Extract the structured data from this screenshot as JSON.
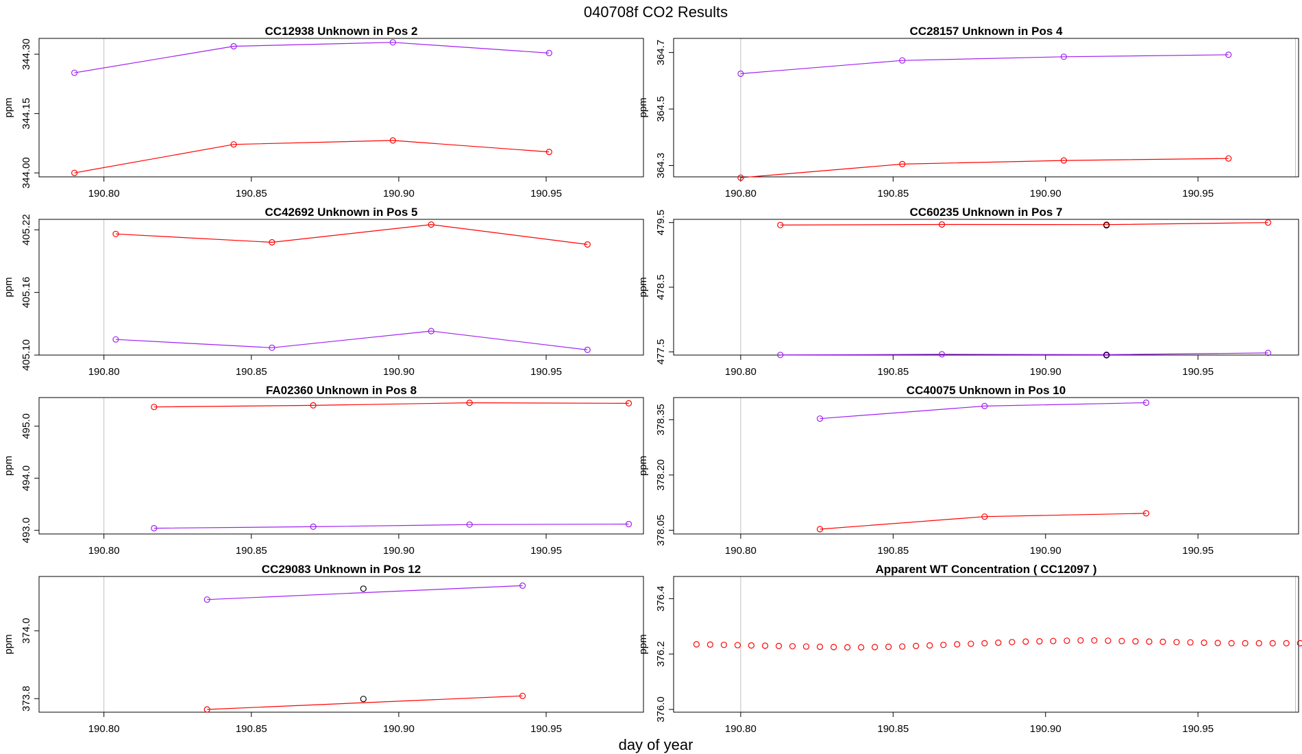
{
  "figure": {
    "title": "040708f  CO2 Results",
    "xlabel": "day of year"
  },
  "colors": {
    "red": "#ff0000",
    "purple": "#a020f0",
    "black": "#000000",
    "grid": "#bebebe",
    "axis": "#000000"
  },
  "chart_data": [
    {
      "type": "line",
      "title": "CC12938    Unknown in Pos 2",
      "ylabel": "ppm",
      "xlim": [
        190.778,
        190.983
      ],
      "ylim": [
        343.99,
        344.34
      ],
      "xticks": [
        190.8,
        190.85,
        190.9,
        190.95
      ],
      "xtick_labels": [
        "190.80",
        "190.85",
        "190.90",
        "190.95"
      ],
      "yticks": [
        344.0,
        344.15,
        344.3
      ],
      "ytick_labels": [
        "344.00",
        "344.15",
        "344.30"
      ],
      "vlines": [
        190.8,
        190.983
      ],
      "series": [
        {
          "name": "purple",
          "color": "#a020f0",
          "x": [
            190.79,
            190.844,
            190.898,
            190.951
          ],
          "y": [
            344.253,
            344.32,
            344.33,
            344.303
          ]
        },
        {
          "name": "red",
          "color": "#ff0000",
          "x": [
            190.79,
            190.844,
            190.898,
            190.951
          ],
          "y": [
            344.0,
            344.072,
            344.082,
            344.053
          ]
        }
      ],
      "black_points": {
        "x": [],
        "y": []
      }
    },
    {
      "type": "line",
      "title": "CC28157    Unknown in Pos 4",
      "ylabel": "ppm",
      "xlim": [
        190.778,
        190.983
      ],
      "ylim": [
        364.26,
        364.75
      ],
      "xticks": [
        190.8,
        190.85,
        190.9,
        190.95
      ],
      "xtick_labels": [
        "190.80",
        "190.85",
        "190.90",
        "190.95"
      ],
      "yticks": [
        364.3,
        364.5,
        364.7
      ],
      "ytick_labels": [
        "364.3",
        "364.5",
        "364.7"
      ],
      "vlines": [
        190.8,
        190.982
      ],
      "series": [
        {
          "name": "purple",
          "color": "#a020f0",
          "x": [
            190.8,
            190.853,
            190.906,
            190.96
          ],
          "y": [
            364.625,
            364.672,
            364.685,
            364.692
          ]
        },
        {
          "name": "red",
          "color": "#ff0000",
          "x": [
            190.8,
            190.853,
            190.906,
            190.96
          ],
          "y": [
            364.257,
            364.305,
            364.318,
            364.325
          ]
        }
      ],
      "black_points": {
        "x": [],
        "y": []
      }
    },
    {
      "type": "line",
      "title": "CC42692    Unknown in Pos 5",
      "ylabel": "ppm",
      "xlim": [
        190.778,
        190.983
      ],
      "ylim": [
        405.1,
        405.23
      ],
      "xticks": [
        190.8,
        190.85,
        190.9,
        190.95
      ],
      "xtick_labels": [
        "190.80",
        "190.85",
        "190.90",
        "190.95"
      ],
      "yticks": [
        405.1,
        405.16,
        405.22
      ],
      "ytick_labels": [
        "405.10",
        "405.16",
        "405.22"
      ],
      "vlines": [
        190.8,
        190.983
      ],
      "series": [
        {
          "name": "red",
          "color": "#ff0000",
          "x": [
            190.804,
            190.857,
            190.911,
            190.964
          ],
          "y": [
            405.216,
            405.208,
            405.225,
            405.206
          ]
        },
        {
          "name": "purple",
          "color": "#a020f0",
          "x": [
            190.804,
            190.857,
            190.911,
            190.964
          ],
          "y": [
            405.115,
            405.107,
            405.123,
            405.105
          ]
        }
      ],
      "black_points": {
        "x": [],
        "y": []
      }
    },
    {
      "type": "line",
      "title": "CC60235    Unknown in Pos 7",
      "ylabel": "ppm",
      "xlim": [
        190.778,
        190.983
      ],
      "ylim": [
        477.45,
        479.55
      ],
      "xticks": [
        190.8,
        190.85,
        190.9,
        190.95
      ],
      "xtick_labels": [
        "190.80",
        "190.85",
        "190.90",
        "190.95"
      ],
      "yticks": [
        477.5,
        478.5,
        479.5
      ],
      "ytick_labels": [
        "477.5",
        "478.5",
        "479.5"
      ],
      "vlines": [
        190.8,
        190.983
      ],
      "series": [
        {
          "name": "red",
          "color": "#ff0000",
          "x": [
            190.813,
            190.866,
            190.92,
            190.973
          ],
          "y": [
            479.462,
            479.47,
            479.468,
            479.5
          ]
        },
        {
          "name": "purple",
          "color": "#a020f0",
          "x": [
            190.813,
            190.866,
            190.92,
            190.973
          ],
          "y": [
            477.452,
            477.462,
            477.456,
            477.483
          ]
        }
      ],
      "black_points": {
        "x": [
          190.92,
          190.92
        ],
        "y": [
          479.458,
          477.447
        ]
      }
    },
    {
      "type": "line",
      "title": "FA02360    Unknown in Pos 8",
      "ylabel": "ppm",
      "xlim": [
        190.778,
        190.983
      ],
      "ylim": [
        492.93,
        495.55
      ],
      "xticks": [
        190.8,
        190.85,
        190.9,
        190.95
      ],
      "xtick_labels": [
        "190.80",
        "190.85",
        "190.90",
        "190.95"
      ],
      "yticks": [
        493.0,
        494.0,
        495.0
      ],
      "ytick_labels": [
        "493.0",
        "494.0",
        "495.0"
      ],
      "vlines": [
        190.8,
        190.983
      ],
      "series": [
        {
          "name": "red",
          "color": "#ff0000",
          "x": [
            190.817,
            190.871,
            190.924,
            190.978
          ],
          "y": [
            495.37,
            495.4,
            495.45,
            495.44
          ]
        },
        {
          "name": "purple",
          "color": "#a020f0",
          "x": [
            190.817,
            190.871,
            190.924,
            190.978
          ],
          "y": [
            493.04,
            493.07,
            493.11,
            493.12
          ]
        }
      ],
      "black_points": {
        "x": [],
        "y": []
      }
    },
    {
      "type": "line",
      "title": "CC40075    Unknown in Pos 10",
      "ylabel": "ppm",
      "xlim": [
        190.778,
        190.983
      ],
      "ylim": [
        378.04,
        378.41
      ],
      "xticks": [
        190.8,
        190.85,
        190.9,
        190.95
      ],
      "xtick_labels": [
        "190.80",
        "190.85",
        "190.90",
        "190.95"
      ],
      "yticks": [
        378.05,
        378.2,
        378.35
      ],
      "ytick_labels": [
        "378.05",
        "378.20",
        "378.35"
      ],
      "vlines": [
        190.8,
        190.983
      ],
      "series": [
        {
          "name": "purple",
          "color": "#a020f0",
          "x": [
            190.826,
            190.88,
            190.933
          ],
          "y": [
            378.353,
            378.387,
            378.396
          ]
        },
        {
          "name": "red",
          "color": "#ff0000",
          "x": [
            190.826,
            190.88,
            190.933
          ],
          "y": [
            378.053,
            378.087,
            378.096
          ]
        }
      ],
      "black_points": {
        "x": [],
        "y": []
      }
    },
    {
      "type": "line",
      "title": "CC29083    Unknown in Pos 12",
      "ylabel": "ppm",
      "xlim": [
        190.778,
        190.983
      ],
      "ylim": [
        373.76,
        374.16
      ],
      "xticks": [
        190.8,
        190.85,
        190.9,
        190.95
      ],
      "xtick_labels": [
        "190.80",
        "190.85",
        "190.90",
        "190.95"
      ],
      "yticks": [
        373.8,
        374.0
      ],
      "ytick_labels": [
        "373.8",
        "374.0"
      ],
      "vlines": [
        190.8,
        190.983
      ],
      "series": [
        {
          "name": "purple",
          "color": "#a020f0",
          "x": [
            190.835,
            190.942
          ],
          "y": [
            374.092,
            374.133
          ]
        },
        {
          "name": "red",
          "color": "#ff0000",
          "x": [
            190.835,
            190.942
          ],
          "y": [
            373.768,
            373.808
          ]
        }
      ],
      "black_points": {
        "x": [
          190.888,
          190.888
        ],
        "y": [
          374.124,
          373.799
        ]
      }
    },
    {
      "type": "scatter",
      "title": "Apparent WT Concentration ( CC12097 )",
      "ylabel": "ppm",
      "xlim": [
        190.778,
        190.983
      ],
      "ylim": [
        375.99,
        376.48
      ],
      "xticks": [
        190.8,
        190.85,
        190.9,
        190.95
      ],
      "xtick_labels": [
        "190.80",
        "190.85",
        "190.90",
        "190.95"
      ],
      "yticks": [
        376.0,
        376.2,
        376.4
      ],
      "ytick_labels": [
        "376.0",
        "376.2",
        "376.4"
      ],
      "vlines": [
        190.8,
        190.982
      ],
      "series": [
        {
          "name": "red",
          "color": "#ff0000",
          "x": [
            190.7855,
            190.79,
            190.7945,
            190.799,
            190.8035,
            190.808,
            190.8125,
            190.817,
            190.8215,
            190.826,
            190.8305,
            190.835,
            190.8395,
            190.844,
            190.8485,
            190.853,
            190.8575,
            190.862,
            190.8665,
            190.871,
            190.8755,
            190.88,
            190.8845,
            190.889,
            190.8935,
            190.898,
            190.9025,
            190.907,
            190.9115,
            190.916,
            190.9205,
            190.925,
            190.9295,
            190.934,
            190.9385,
            190.943,
            190.9475,
            190.952,
            190.9565,
            190.961,
            190.9655,
            190.97,
            190.9745,
            190.979,
            190.9835
          ],
          "y": [
            376.235,
            376.234,
            376.233,
            376.232,
            376.231,
            376.23,
            376.229,
            376.228,
            376.227,
            376.226,
            376.225,
            376.224,
            376.224,
            376.225,
            376.226,
            376.227,
            376.229,
            376.231,
            376.233,
            376.235,
            376.237,
            376.239,
            376.241,
            376.243,
            376.245,
            376.246,
            376.247,
            376.248,
            376.249,
            376.249,
            376.248,
            376.247,
            376.246,
            376.245,
            376.244,
            376.243,
            376.242,
            376.241,
            376.24,
            376.239,
            376.239,
            376.239,
            376.239,
            376.239,
            376.239
          ]
        }
      ],
      "black_points": {
        "x": [],
        "y": []
      }
    }
  ]
}
